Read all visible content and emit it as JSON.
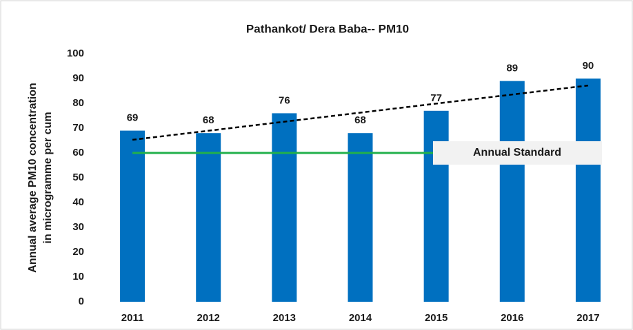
{
  "chart_data": {
    "type": "bar",
    "title": "Pathankot/ Dera Baba-- PM10",
    "y_label": [
      "Annual average PM10 concentration",
      "in microgramme per cum"
    ],
    "categories": [
      "2011",
      "2012",
      "2013",
      "2014",
      "2015",
      "2016",
      "2017"
    ],
    "values": [
      69,
      68,
      76,
      68,
      77,
      89,
      90
    ],
    "color": "#0070c0",
    "ylim": [
      0,
      100
    ],
    "yticks": [
      0,
      10,
      20,
      30,
      40,
      50,
      60,
      70,
      80,
      90,
      100
    ],
    "standard": {
      "label": "Annual Standard",
      "value": 60,
      "color": "#22b04b"
    },
    "trend": {
      "values": [
        65.3,
        87.2
      ],
      "color": "#000000"
    }
  }
}
